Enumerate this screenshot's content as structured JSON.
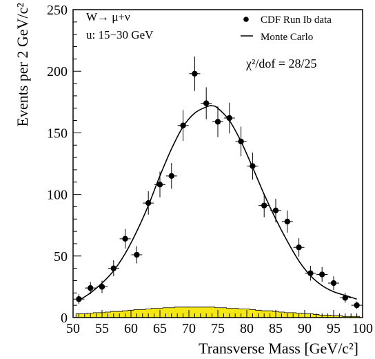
{
  "chart_data": {
    "type": "scatter",
    "xlabel": "Transverse Mass [GeV/c²]",
    "ylabel": "Events per 2 GeV/c²",
    "xlim": [
      50,
      100
    ],
    "ylim": [
      0,
      250
    ],
    "xticks": [
      "50",
      "55",
      "60",
      "65",
      "70",
      "75",
      "80",
      "85",
      "90",
      "95",
      "100"
    ],
    "yticks": [
      "0",
      "50",
      "100",
      "150",
      "200",
      "250"
    ],
    "annotation_lines": [
      "W→ μ+ν",
      "u: 15−30 GeV"
    ],
    "chi2_text": "χ²/dof = 28/25",
    "legend_position": "top-right",
    "series": [
      {
        "name": "CDF Run Ib data",
        "style": "points-with-errorbars",
        "color": "#000000",
        "points": [
          {
            "x": 51,
            "y": 15,
            "err": 4
          },
          {
            "x": 53,
            "y": 24,
            "err": 5
          },
          {
            "x": 55,
            "y": 25,
            "err": 5
          },
          {
            "x": 57,
            "y": 40,
            "err": 6.5
          },
          {
            "x": 59,
            "y": 64,
            "err": 8
          },
          {
            "x": 61,
            "y": 51,
            "err": 7
          },
          {
            "x": 63,
            "y": 93,
            "err": 9.5
          },
          {
            "x": 65,
            "y": 108,
            "err": 10.5
          },
          {
            "x": 67,
            "y": 115,
            "err": 10.5
          },
          {
            "x": 69,
            "y": 156,
            "err": 12.5
          },
          {
            "x": 71,
            "y": 198,
            "err": 14
          },
          {
            "x": 73,
            "y": 174,
            "err": 13
          },
          {
            "x": 75,
            "y": 159,
            "err": 12.5
          },
          {
            "x": 77,
            "y": 162,
            "err": 12.5
          },
          {
            "x": 79,
            "y": 143,
            "err": 12
          },
          {
            "x": 81,
            "y": 123,
            "err": 11
          },
          {
            "x": 83,
            "y": 91,
            "err": 9.5
          },
          {
            "x": 85,
            "y": 87,
            "err": 9.5
          },
          {
            "x": 87,
            "y": 78,
            "err": 9
          },
          {
            "x": 89,
            "y": 57,
            "err": 7.5
          },
          {
            "x": 91,
            "y": 36,
            "err": 6
          },
          {
            "x": 93,
            "y": 35,
            "err": 6
          },
          {
            "x": 95,
            "y": 28,
            "err": 5.5
          },
          {
            "x": 97,
            "y": 16,
            "err": 4
          },
          {
            "x": 99,
            "y": 10,
            "err": 3
          }
        ]
      },
      {
        "name": "Monte Carlo",
        "style": "line",
        "color": "#000000",
        "x": [
          51,
          53,
          55,
          57,
          59,
          61,
          63,
          65,
          67,
          69,
          71,
          73,
          74,
          75,
          77,
          79,
          81,
          83,
          85,
          87,
          89,
          91,
          93,
          95,
          97,
          99
        ],
        "y": [
          14,
          20,
          28,
          38,
          52,
          70,
          91,
          115,
          137,
          155,
          166,
          171,
          172,
          170,
          160,
          143,
          122,
          100,
          80,
          62,
          46,
          34,
          26,
          21,
          18,
          15
        ]
      },
      {
        "name": "",
        "style": "filled-histogram",
        "color": "#f5e812",
        "bin_width": 1,
        "x": [
          51,
          52,
          53,
          54,
          55,
          56,
          57,
          58,
          59,
          60,
          61,
          62,
          63,
          64,
          65,
          66,
          67,
          68,
          69,
          70,
          71,
          72,
          73,
          74,
          75,
          76,
          77,
          78,
          79,
          80,
          81,
          82,
          83,
          84,
          85,
          86,
          87,
          88,
          89,
          90,
          91,
          92,
          93,
          94,
          95,
          96,
          97,
          98,
          99
        ],
        "y": [
          3,
          3,
          3.5,
          4,
          4,
          4.5,
          5,
          5,
          5.5,
          6,
          6.5,
          6.5,
          7,
          7.5,
          7.5,
          8,
          8,
          8.5,
          8.5,
          8.5,
          8.5,
          8.5,
          8.5,
          8.5,
          8,
          8,
          7.5,
          7.5,
          7,
          7,
          6.5,
          6,
          5.5,
          5.5,
          5,
          4.5,
          4,
          4,
          3.5,
          3,
          3,
          2.5,
          2,
          2,
          1.5,
          1.5,
          1,
          1,
          1
        ]
      }
    ]
  }
}
